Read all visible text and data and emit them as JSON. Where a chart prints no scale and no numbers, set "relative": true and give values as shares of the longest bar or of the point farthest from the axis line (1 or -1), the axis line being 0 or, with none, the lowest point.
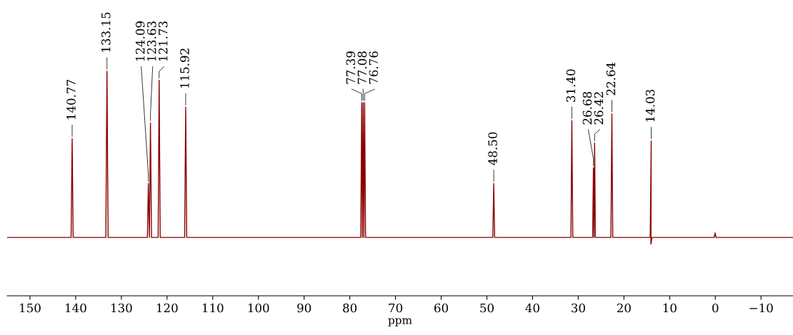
{
  "chart_data": {
    "type": "line",
    "relative": true,
    "xlabel": "ppm",
    "tick_labels": "x",
    "xlim": [
      155,
      -17
    ],
    "xticks": [
      150,
      140,
      130,
      120,
      110,
      100,
      90,
      80,
      70,
      60,
      50,
      40,
      30,
      20,
      10,
      0,
      {
        "value": -10,
        "label": "−10"
      }
    ],
    "marker": "none",
    "line_style": "solid",
    "series": [
      {
        "color": "#8b0000",
        "x": [
          155,
          141.0,
          140.77,
          140.55,
          133.4,
          133.15,
          132.9,
          124.3,
          124.09,
          123.86,
          123.63,
          123.4,
          121.95,
          121.73,
          121.5,
          116.15,
          115.92,
          115.7,
          100,
          77.6,
          77.39,
          77.24,
          77.08,
          76.92,
          76.76,
          76.55,
          48.7,
          48.5,
          48.3,
          31.6,
          31.4,
          31.2,
          26.85,
          26.68,
          26.55,
          26.42,
          26.25,
          22.85,
          22.64,
          22.45,
          14.25,
          14.03,
          14.1,
          13.85,
          0.25,
          0.05,
          -0.15,
          -17
        ],
        "values": [
          0.26,
          0.26,
          0.7,
          0.26,
          0.26,
          1.0,
          0.26,
          0.26,
          0.5,
          0.26,
          0.77,
          0.26,
          0.26,
          0.96,
          0.26,
          0.26,
          0.84,
          0.26,
          0.26,
          0.26,
          0.86,
          0.26,
          0.86,
          0.26,
          0.86,
          0.26,
          0.26,
          0.5,
          0.26,
          0.26,
          0.78,
          0.26,
          0.26,
          0.57,
          0.26,
          0.68,
          0.26,
          0.26,
          0.81,
          0.26,
          0.26,
          0.69,
          0.23,
          0.26,
          0.26,
          0.28,
          0.26,
          0.26
        ]
      }
    ],
    "annotations": [
      {
        "text": "140.77",
        "x": 140.77,
        "y": 0.7
      },
      {
        "text": "133.15",
        "x": 133.15,
        "y": 1.0
      },
      {
        "text": "124.09",
        "x": 124.09,
        "y": 0.5
      },
      {
        "text": "123.63",
        "x": 123.63,
        "y": 0.77
      },
      {
        "text": "121.73",
        "x": 121.73,
        "y": 0.96
      },
      {
        "text": "115.92",
        "x": 115.92,
        "y": 0.84
      },
      {
        "text": "77.39",
        "x": 77.39,
        "y": 0.86
      },
      {
        "text": "77.08",
        "x": 77.08,
        "y": 0.86
      },
      {
        "text": "76.76",
        "x": 76.76,
        "y": 0.86
      },
      {
        "text": "48.50",
        "x": 48.5,
        "y": 0.5
      },
      {
        "text": "31.40",
        "x": 31.4,
        "y": 0.78
      },
      {
        "text": "26.68",
        "x": 26.68,
        "y": 0.57
      },
      {
        "text": "26.42",
        "x": 26.42,
        "y": 0.68
      },
      {
        "text": "22.64",
        "x": 22.64,
        "y": 0.81
      },
      {
        "text": "14.03",
        "x": 14.03,
        "y": 0.69
      }
    ]
  }
}
